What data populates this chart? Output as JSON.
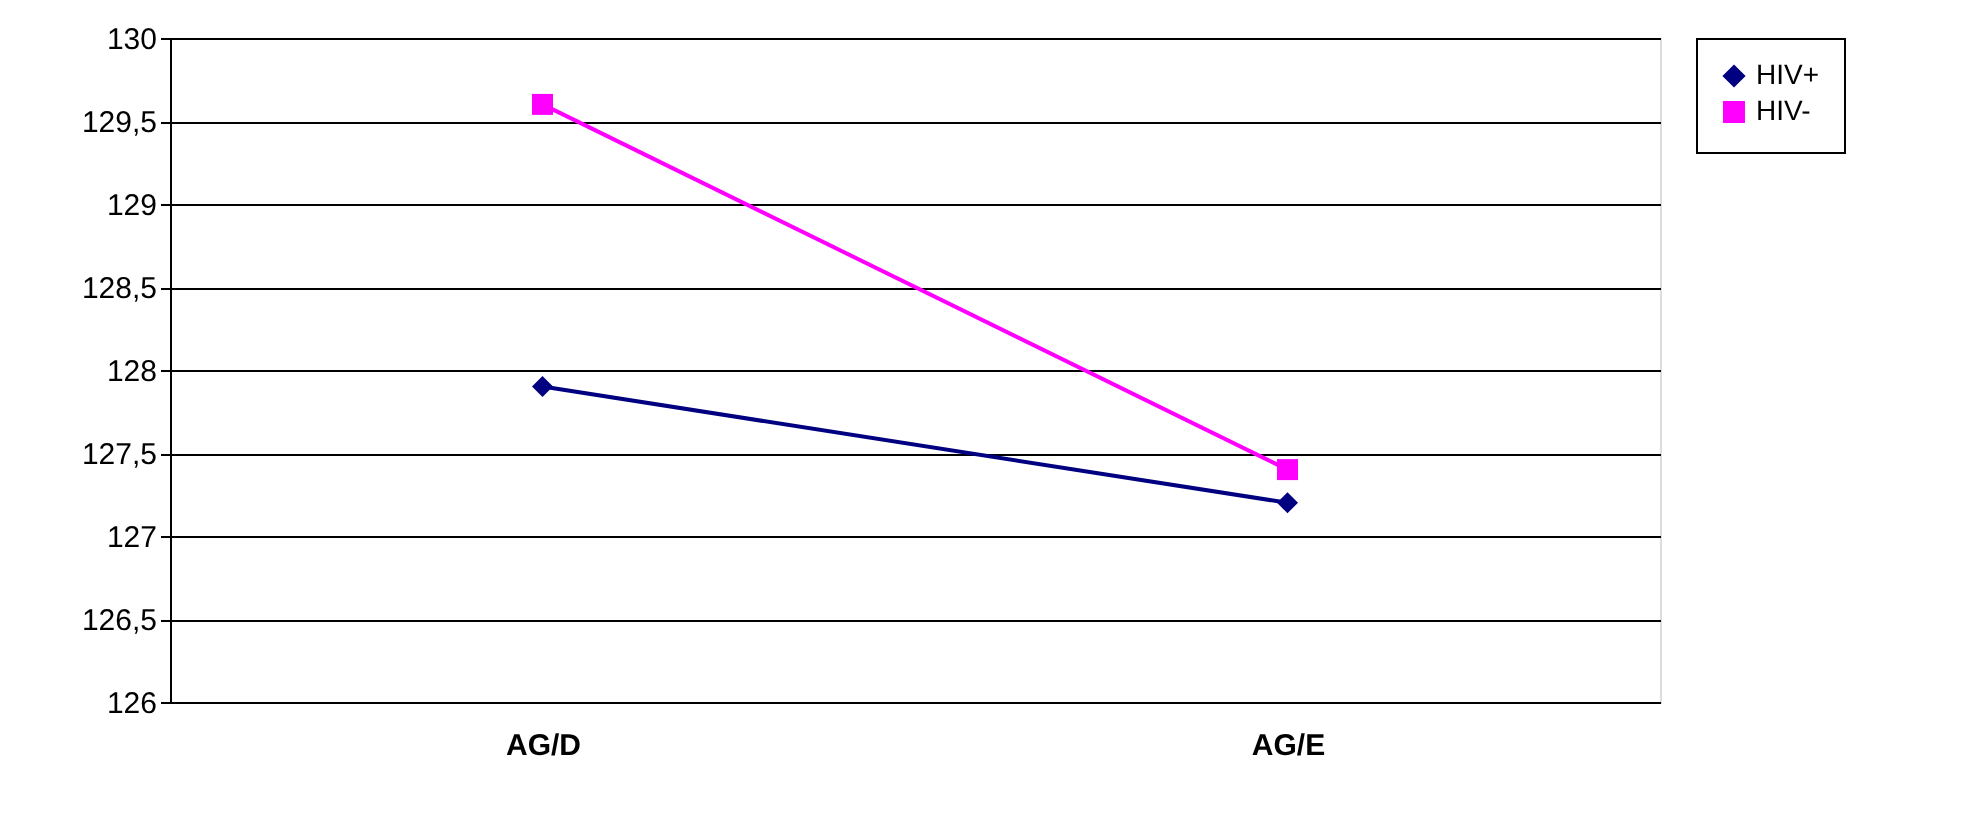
{
  "chart_data": {
    "type": "line",
    "categories": [
      "AG/D",
      "AG/E"
    ],
    "series": [
      {
        "name": "HIV+",
        "color": "#000080",
        "marker": "diamond",
        "values": [
          127.9,
          127.2
        ]
      },
      {
        "name": "HIV-",
        "color": "#ff00ff",
        "marker": "square",
        "values": [
          129.6,
          127.4
        ]
      }
    ],
    "ylim": [
      126,
      130
    ],
    "yticks": [
      126,
      {
        "value": 126.5,
        "label": "126,5"
      },
      127,
      {
        "value": 127.5,
        "label": "127,5"
      },
      128,
      {
        "value": 128.5,
        "label": "128,5"
      },
      129,
      {
        "value": 129.5,
        "label": "129,5"
      },
      130
    ],
    "grid": "y",
    "legend": "right",
    "line_style": "solid"
  }
}
